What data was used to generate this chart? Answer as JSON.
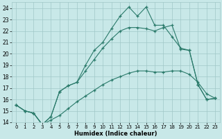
{
  "xlabel": "Humidex (Indice chaleur)",
  "xlim": [
    -0.5,
    23.5
  ],
  "ylim": [
    14,
    24.5
  ],
  "xticks": [
    0,
    1,
    2,
    3,
    4,
    5,
    6,
    7,
    8,
    9,
    10,
    11,
    12,
    13,
    14,
    15,
    16,
    17,
    18,
    19,
    20,
    21,
    22,
    23
  ],
  "yticks": [
    14,
    15,
    16,
    17,
    18,
    19,
    20,
    21,
    22,
    23,
    24
  ],
  "bg_color": "#c8e8e8",
  "grid_color": "#a0c8c8",
  "line_color": "#2a7a6a",
  "line1_x": [
    0,
    1,
    2,
    3,
    4,
    5,
    6,
    7,
    8,
    9,
    10,
    11,
    12,
    13,
    14,
    15,
    16,
    17,
    18,
    19,
    20,
    21,
    22,
    23
  ],
  "line1_y": [
    15.5,
    15.0,
    14.8,
    13.8,
    14.5,
    16.7,
    17.2,
    17.5,
    19.0,
    20.3,
    21.0,
    22.2,
    23.3,
    24.1,
    23.3,
    24.1,
    22.5,
    22.5,
    21.5,
    20.5,
    20.3,
    17.3,
    16.0,
    16.1
  ],
  "line2_x": [
    0,
    1,
    2,
    3,
    4,
    5,
    6,
    7,
    8,
    9,
    10,
    11,
    12,
    13,
    14,
    15,
    16,
    17,
    18,
    19,
    20,
    21,
    22,
    23
  ],
  "line2_y": [
    15.5,
    15.0,
    14.8,
    13.8,
    14.5,
    16.7,
    17.2,
    17.5,
    18.5,
    19.5,
    20.5,
    21.3,
    22.0,
    22.3,
    22.3,
    22.2,
    22.0,
    22.3,
    22.5,
    20.4,
    20.3,
    17.3,
    16.0,
    16.1
  ],
  "line3_x": [
    0,
    1,
    2,
    3,
    4,
    5,
    6,
    7,
    8,
    9,
    10,
    11,
    12,
    13,
    14,
    15,
    16,
    17,
    18,
    19,
    20,
    21,
    22,
    23
  ],
  "line3_y": [
    15.5,
    15.0,
    14.8,
    13.8,
    14.2,
    14.6,
    15.2,
    15.8,
    16.3,
    16.8,
    17.3,
    17.7,
    18.0,
    18.3,
    18.5,
    18.5,
    18.4,
    18.4,
    18.5,
    18.5,
    18.2,
    17.5,
    16.5,
    16.1
  ]
}
